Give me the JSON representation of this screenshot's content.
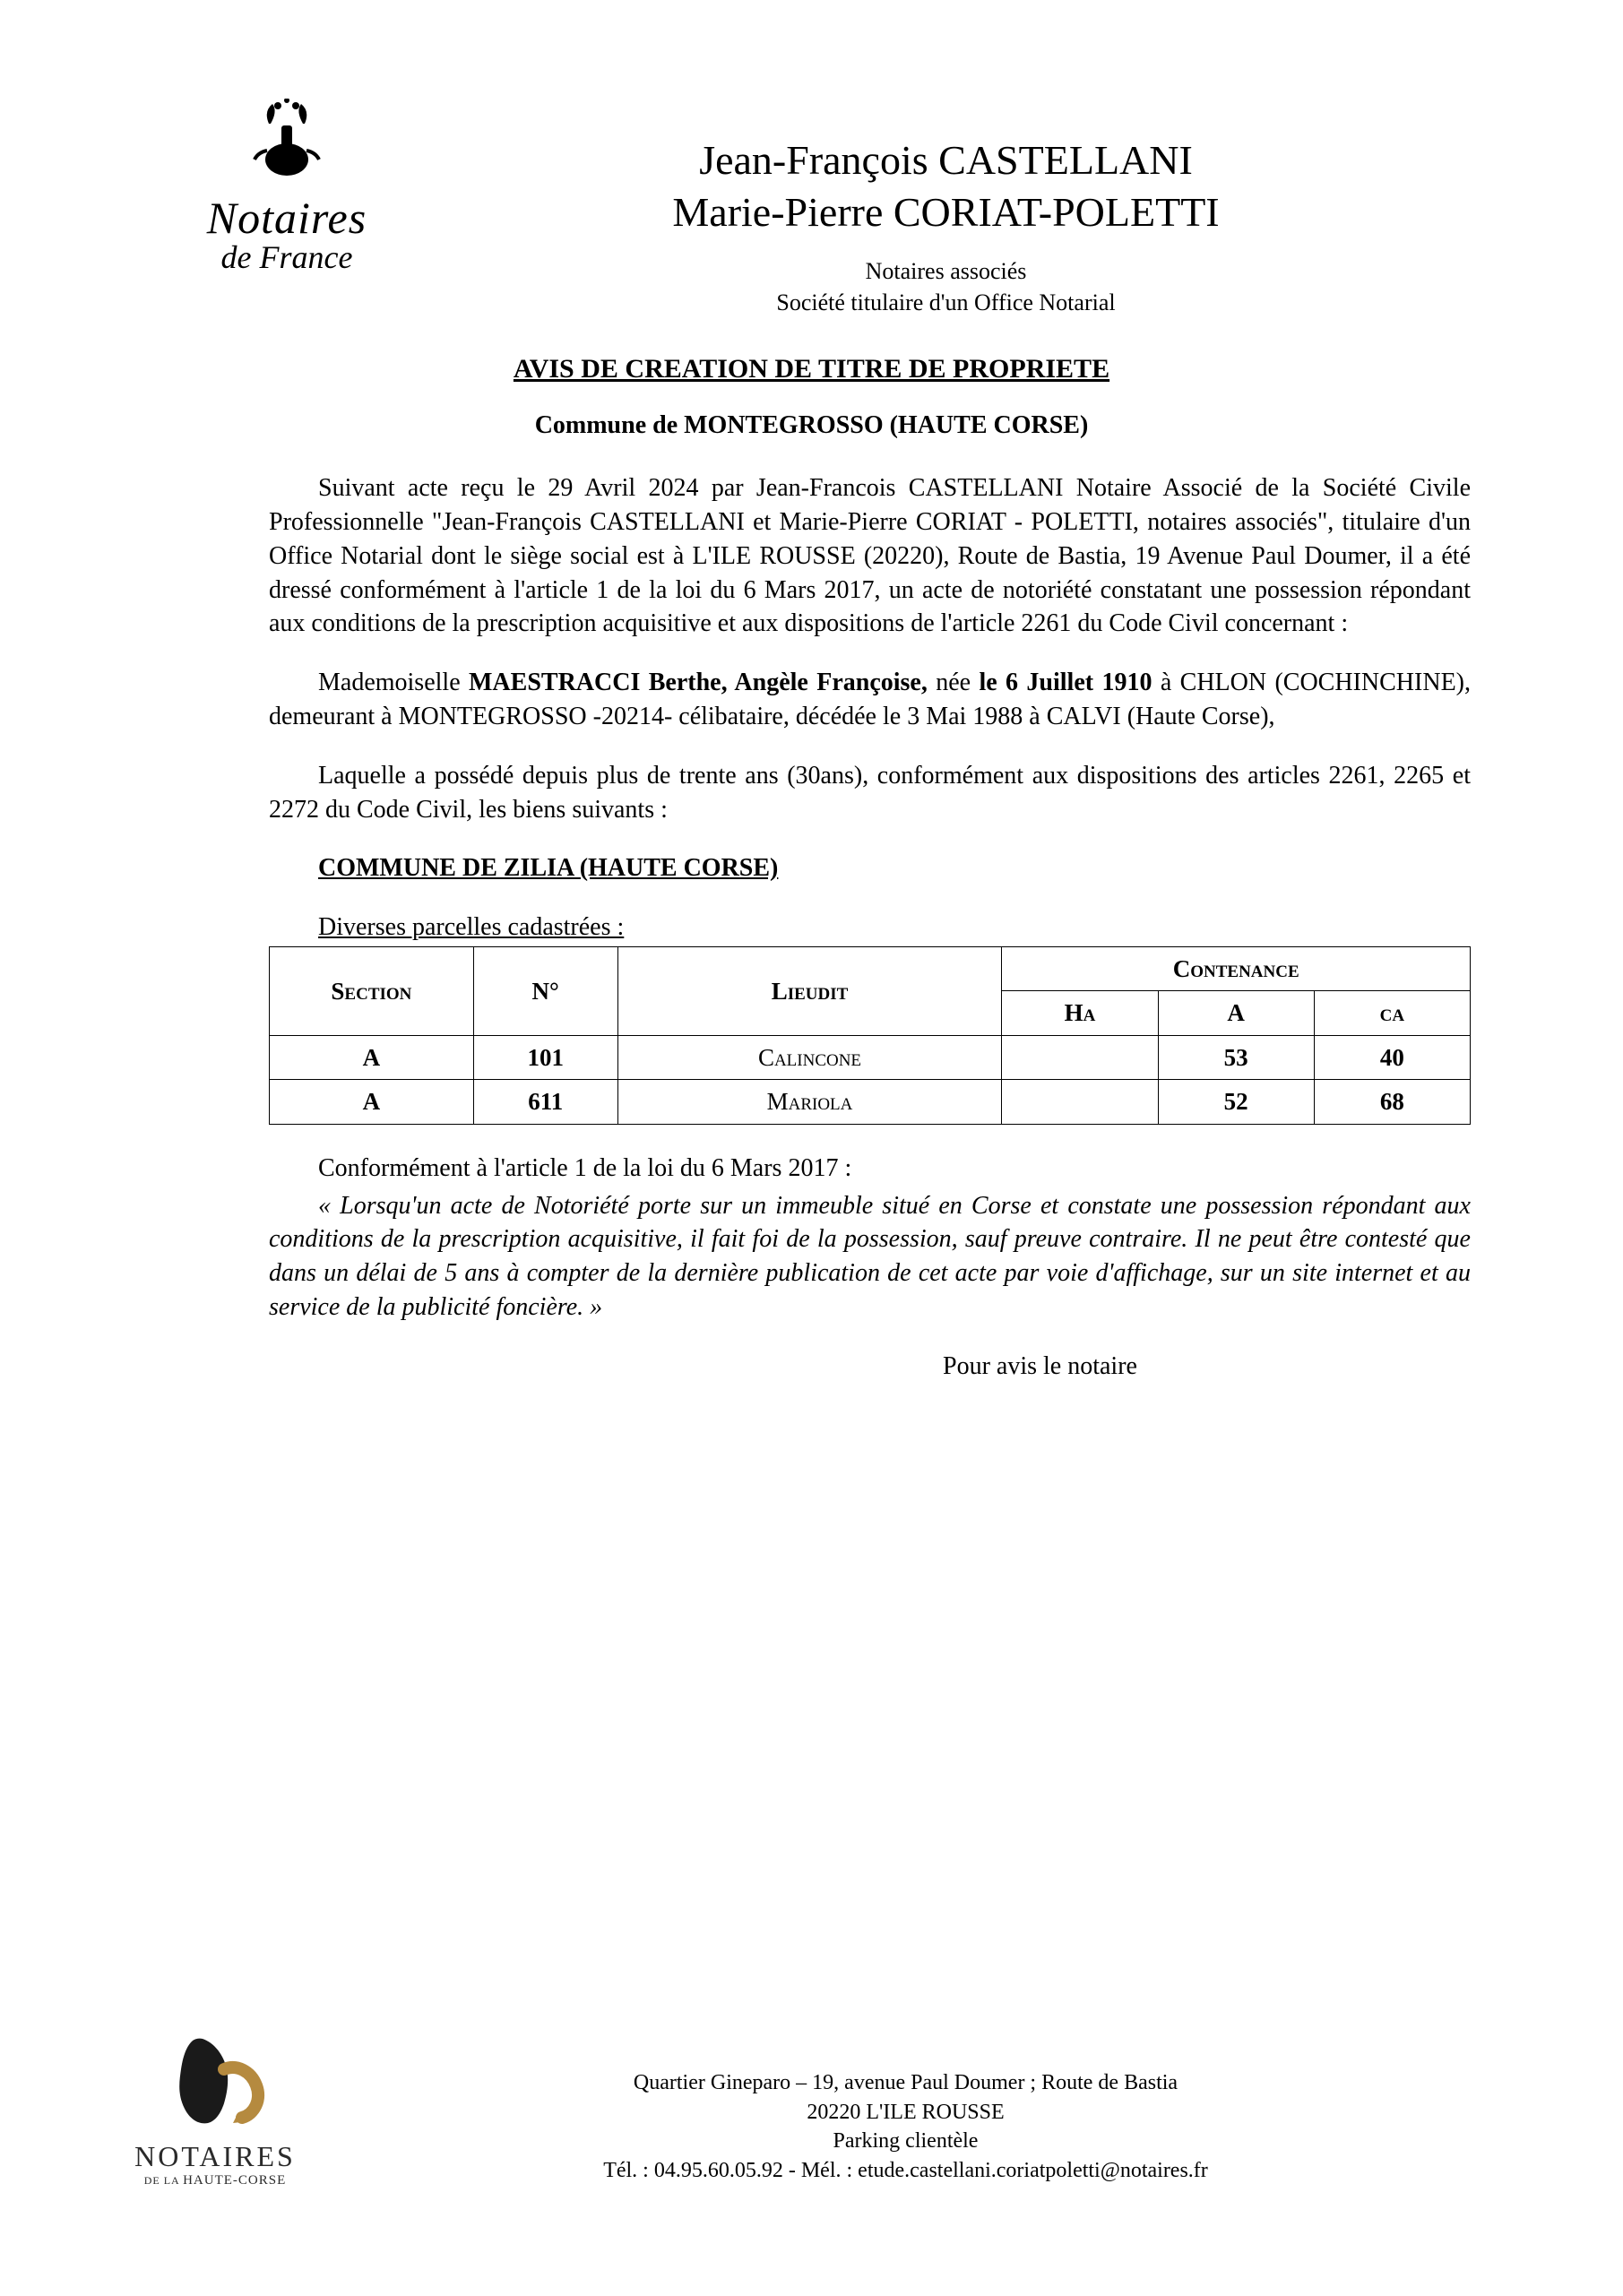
{
  "logo_top": {
    "main": "Notaires",
    "sub": "de France"
  },
  "header": {
    "name1": "Jean-François CASTELLANI",
    "name2": "Marie-Pierre CORIAT-POLETTI",
    "sub1": "Notaires associés",
    "sub2": "Société titulaire d'un Office Notarial"
  },
  "title": "AVIS DE CREATION DE TITRE DE PROPRIETE",
  "commune": "Commune de MONTEGROSSO (HAUTE CORSE)",
  "para1": "Suivant acte reçu le 29 Avril 2024 par Jean-Francois CASTELLANI Notaire Associé de la Société Civile Professionnelle \"Jean-François CASTELLANI et Marie-Pierre CORIAT - POLETTI, notaires associés\", titulaire d'un Office Notarial dont le siège social est à L'ILE ROUSSE (20220), Route de Bastia, 19 Avenue Paul Doumer, il a été dressé conformément à l'article 1 de la loi du 6 Mars 2017, un acte de notoriété constatant une possession répondant aux conditions de la prescription acquisitive et aux dispositions de l'article 2261 du Code Civil concernant :",
  "para2_pre": "Mademoiselle ",
  "para2_name": "MAESTRACCI Berthe, Angèle Françoise, ",
  "para2_mid": "née ",
  "para2_date": "le 6 Juillet 1910",
  "para2_post": " à CHLON (COCHINCHINE), demeurant à MONTEGROSSO -20214- célibataire, décédée le 3 Mai 1988 à CALVI (Haute Corse),",
  "para3": "Laquelle a possédé depuis plus de trente ans (30ans), conformément aux dispositions des articles 2261, 2265 et 2272 du Code Civil, les biens suivants :",
  "section_title": "COMMUNE DE ZILIA (HAUTE CORSE)",
  "table_intro": "Diverses parcelles cadastrées :",
  "table": {
    "columns": {
      "section": "Section",
      "numero": "N°",
      "lieudit": "Lieudit",
      "contenance": "Contenance",
      "ha": "Ha",
      "a": "A",
      "ca": "ca"
    },
    "rows": [
      {
        "section": "A",
        "numero": "101",
        "lieudit": "Calincone",
        "ha": "",
        "a": "53",
        "ca": "40"
      },
      {
        "section": "A",
        "numero": "611",
        "lieudit": "Mariola",
        "ha": "",
        "a": "52",
        "ca": "68"
      }
    ],
    "col_widths": [
      "17%",
      "12%",
      "32%",
      "13%",
      "13%",
      "13%"
    ]
  },
  "para4_intro": "Conformément à l'article 1 de la loi du 6 Mars 2017 :",
  "para4_quote": "« Lorsqu'un acte de Notoriété porte sur un immeuble situé en Corse et constate une possession répondant aux conditions de la prescription acquisitive, il fait foi de la possession, sauf preuve contraire. Il ne peut être contesté que dans un délai de 5 ans à compter de la dernière publication de cet acte par voie d'affichage, sur un site internet et au service de la publicité foncière. »",
  "signature": "Pour avis le notaire",
  "footer_logo": {
    "main": "NOTAIRES",
    "sub": "DE LA HAUTE-CORSE"
  },
  "footer": {
    "line1": "Quartier Gineparo – 19, avenue Paul Doumer ; Route de Bastia",
    "line2": "20220 L'ILE ROUSSE",
    "line3": "Parking clientèle",
    "line4": "Tél. : 04.95.60.05.92 - Mél. : etude.castellani.coriatpoletti@notaires.fr"
  },
  "colors": {
    "text": "#000000",
    "background": "#ffffff",
    "footer_logo_accent": "#b58a3f"
  }
}
